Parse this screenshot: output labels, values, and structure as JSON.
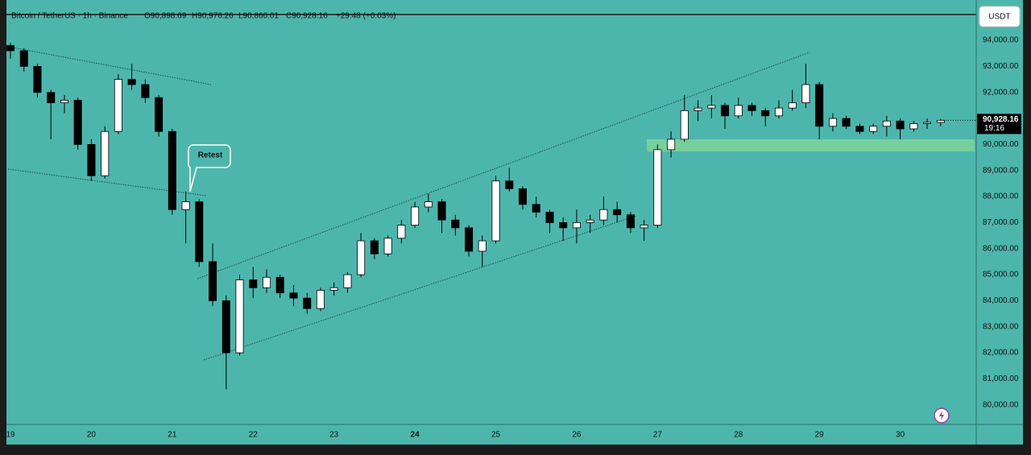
{
  "chart_data": {
    "type": "candlestick",
    "header": {
      "symbol": "Bitcoin / TetherUS · 1h · Binance",
      "open": "O90,898.69",
      "high": "H90,976.26",
      "low": "L90,860.01",
      "close": "C90,928.16",
      "change": "+29.48 (+0.03%)"
    },
    "currency": "USDT",
    "annotation": "Retest",
    "last_price": {
      "value": 90928.16,
      "label": "90,928.16"
    },
    "countdown": "19:16",
    "up_color": "#ffffff",
    "down_color": "#000000",
    "background": "#4db6ac",
    "x": [
      19,
      19.167,
      19.333,
      19.5,
      19.667,
      19.833,
      20,
      20.167,
      20.333,
      20.5,
      20.667,
      20.833,
      21,
      21.167,
      21.333,
      21.5,
      21.667,
      21.833,
      22,
      22.167,
      22.333,
      22.5,
      22.667,
      22.833,
      23,
      23.167,
      23.333,
      23.5,
      23.667,
      23.833,
      24,
      24.167,
      24.333,
      24.5,
      24.667,
      24.833,
      25,
      25.167,
      25.333,
      25.5,
      25.667,
      25.833,
      26,
      26.167,
      26.333,
      26.5,
      26.667,
      26.833,
      27,
      27.167,
      27.333,
      27.5,
      27.667,
      27.833,
      28,
      28.167,
      28.333,
      28.5,
      28.667,
      28.833,
      29,
      29.167,
      29.333,
      29.5,
      29.667,
      29.833,
      30,
      30.167,
      30.333,
      30.5
    ],
    "open": [
      93800,
      93600,
      93000,
      92000,
      91600,
      91700,
      90000,
      88800,
      90500,
      92500,
      92300,
      91800,
      90500,
      87500,
      87800,
      85500,
      84000,
      82000,
      84800,
      84500,
      84900,
      84300,
      84100,
      83700,
      84400,
      84500,
      85000,
      86300,
      85800,
      86400,
      86900,
      87600,
      87800,
      87100,
      86800,
      85900,
      86300,
      88600,
      88300,
      87700,
      87400,
      87000,
      86800,
      87000,
      87100,
      87500,
      87300,
      86800,
      86900,
      89800,
      90200,
      91300,
      91400,
      91500,
      91100,
      91500,
      91300,
      91100,
      91400,
      91600,
      92300,
      90700,
      91000,
      90700,
      90500,
      90700,
      90900,
      90600,
      90800,
      90850
    ],
    "high": [
      93900,
      93700,
      93100,
      92100,
      91900,
      91800,
      90200,
      90700,
      92700,
      93100,
      92500,
      91900,
      90600,
      88200,
      87900,
      86200,
      84200,
      85000,
      85300,
      85200,
      85000,
      84600,
      84300,
      84500,
      84700,
      85100,
      86600,
      86400,
      86500,
      87100,
      87800,
      88100,
      87900,
      87300,
      86900,
      86500,
      88800,
      89100,
      88400,
      88000,
      87500,
      87200,
      87500,
      87300,
      88000,
      87800,
      87400,
      87100,
      90000,
      90500,
      91900,
      91700,
      91900,
      91600,
      91800,
      91600,
      91400,
      91700,
      92100,
      93100,
      92400,
      91200,
      91100,
      90800,
      90800,
      91100,
      91000,
      90900,
      91000,
      90980
    ],
    "low": [
      93300,
      92800,
      91800,
      90200,
      91200,
      89800,
      88600,
      88700,
      90400,
      92100,
      91600,
      90300,
      87300,
      86200,
      85300,
      83800,
      80600,
      81900,
      84100,
      84300,
      84100,
      83800,
      83500,
      83600,
      84200,
      84300,
      84900,
      85600,
      85700,
      86200,
      86800,
      87400,
      86600,
      86500,
      85700,
      85300,
      86200,
      88200,
      87500,
      87200,
      86600,
      86300,
      86200,
      86600,
      86900,
      87000,
      86600,
      86300,
      86800,
      89500,
      90100,
      90900,
      91000,
      90600,
      91000,
      91100,
      90700,
      91000,
      91300,
      91400,
      90200,
      90500,
      90600,
      90400,
      90400,
      90300,
      90200,
      90500,
      90600,
      90700
    ],
    "close": [
      93600,
      93000,
      92000,
      91600,
      91700,
      90000,
      88800,
      90500,
      92500,
      92300,
      91800,
      90500,
      87500,
      87800,
      85500,
      84000,
      82000,
      84800,
      84500,
      84900,
      84300,
      84100,
      83700,
      84400,
      84500,
      85000,
      86300,
      85800,
      86400,
      86900,
      87600,
      87800,
      87100,
      86800,
      85900,
      86300,
      88600,
      88300,
      87700,
      87400,
      87000,
      86800,
      87000,
      87100,
      87500,
      87300,
      86800,
      86900,
      89800,
      90200,
      91300,
      91400,
      91500,
      91100,
      91500,
      91300,
      91100,
      91400,
      91600,
      92300,
      90700,
      91000,
      90700,
      90500,
      90700,
      90900,
      90600,
      90800,
      90850,
      90928.16
    ],
    "xlim": [
      18.97,
      30.94
    ],
    "xticks": [
      19,
      20,
      21,
      22,
      23,
      24,
      25,
      26,
      27,
      28,
      29,
      30
    ],
    "ylim": [
      79250,
      94930
    ],
    "yticks": [
      {
        "value": 80000,
        "label": "80,000.00"
      },
      {
        "value": 81000,
        "label": "81,000.00"
      },
      {
        "value": 82000,
        "label": "82,000.00"
      },
      {
        "value": 83000,
        "label": "83,000.00"
      },
      {
        "value": 84000,
        "label": "84,000.00"
      },
      {
        "value": 85000,
        "label": "85,000.00"
      },
      {
        "value": 86000,
        "label": "86,000.00"
      },
      {
        "value": 87000,
        "label": "87,000.00"
      },
      {
        "value": 88000,
        "label": "88,000.00"
      },
      {
        "value": 89000,
        "label": "89,000.00"
      },
      {
        "value": 90000,
        "label": "90,000.00"
      },
      {
        "value": 91000,
        "label": "91,000.00"
      },
      {
        "value": 92000,
        "label": "92,000.00"
      },
      {
        "value": 93000,
        "label": "93,000.00"
      },
      {
        "value": 94000,
        "label": "94,000.00"
      }
    ],
    "grid": false
  }
}
